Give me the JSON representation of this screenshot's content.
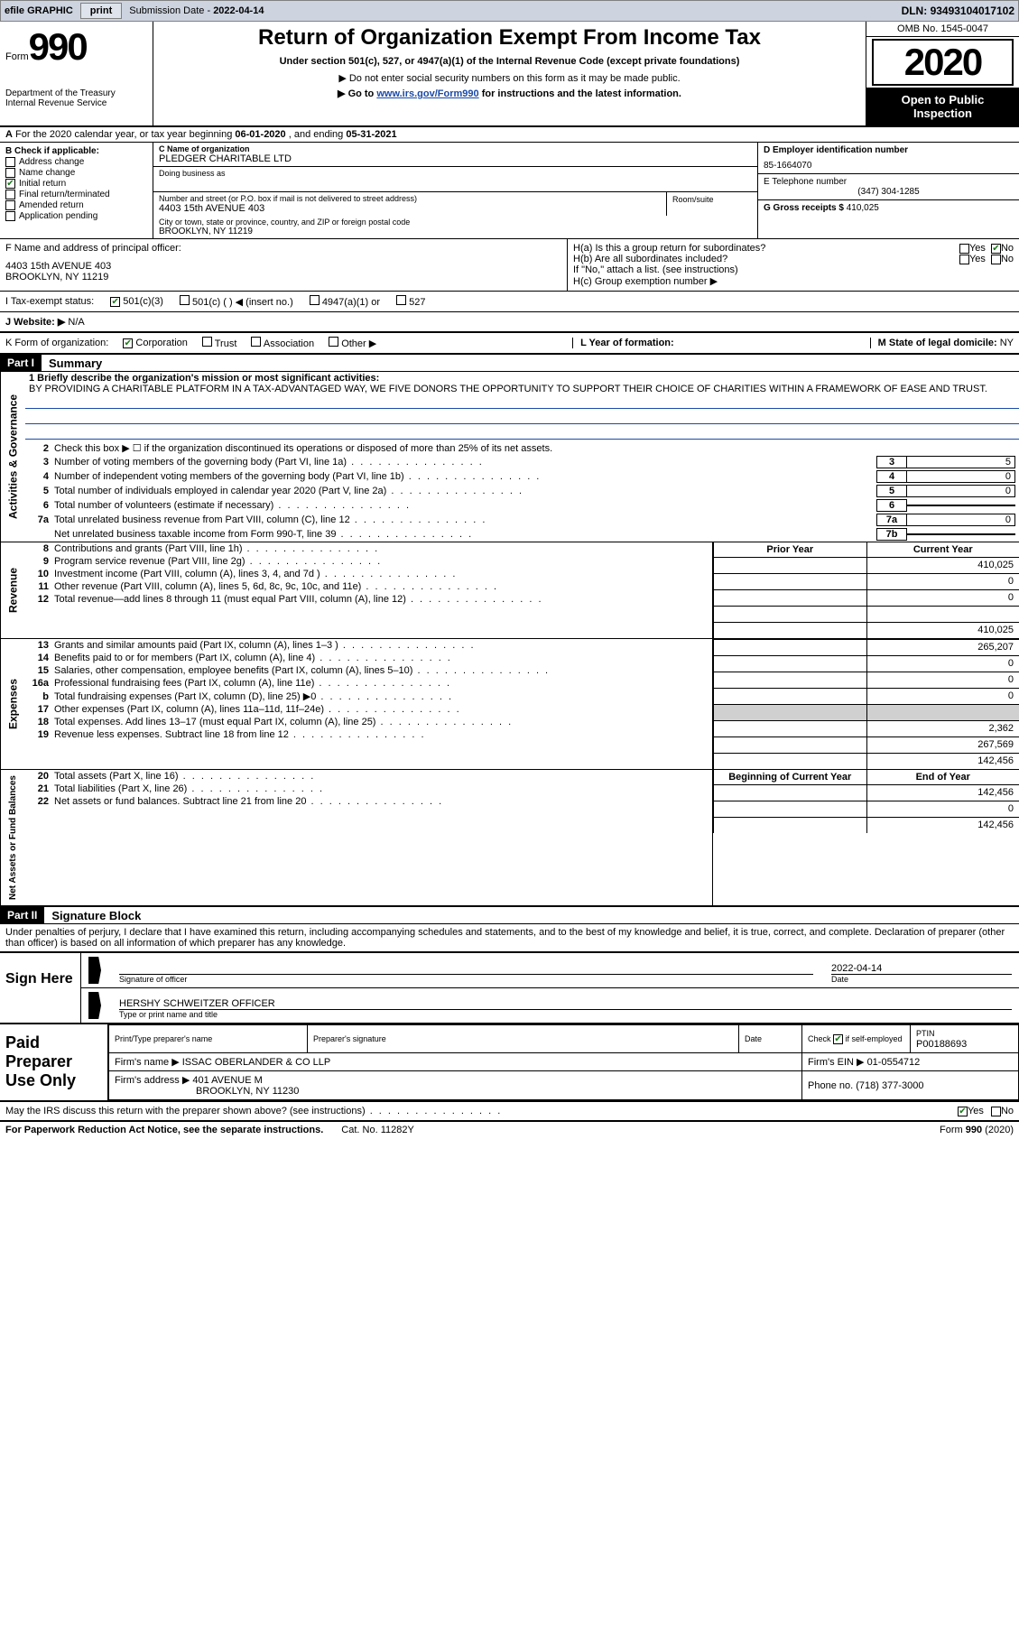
{
  "topbar": {
    "efile": "efile GRAPHIC",
    "print": "print",
    "subdate_label": "Submission Date - ",
    "subdate": "2022-04-14",
    "dln_label": "DLN: ",
    "dln": "93493104017102"
  },
  "header": {
    "form_prefix": "Form",
    "form_number": "990",
    "dept1": "Department of the Treasury",
    "dept2": "Internal Revenue Service",
    "title": "Return of Organization Exempt From Income Tax",
    "subtitle": "Under section 501(c), 527, or 4947(a)(1) of the Internal Revenue Code (except private foundations)",
    "warn1": "▶ Do not enter social security numbers on this form as it may be made public.",
    "warn2_prefix": "▶ Go to ",
    "warn2_link": "www.irs.gov/Form990",
    "warn2_suffix": " for instructions and the latest information.",
    "omb": "OMB No. 1545-0047",
    "year": "2020",
    "open1": "Open to Public",
    "open2": "Inspection"
  },
  "period": {
    "text1": "For the 2020 calendar year, or tax year beginning ",
    "begin": "06-01-2020",
    "text2": " , and ending ",
    "end": "05-31-2021",
    "prefix": "A"
  },
  "checkboxes": {
    "label": "B Check if applicable:",
    "address": "Address change",
    "name": "Name change",
    "initial": "Initial return",
    "final": "Final return/terminated",
    "amended": "Amended return",
    "app": "Application pending"
  },
  "org": {
    "c_label": "C Name of organization",
    "name": "PLEDGER CHARITABLE LTD",
    "dba_label": "Doing business as",
    "dba": "",
    "addr_label": "Number and street (or P.O. box if mail is not delivered to street address)",
    "addr": "4403 15th AVENUE 403",
    "room_label": "Room/suite",
    "city_label": "City or town, state or province, country, and ZIP or foreign postal code",
    "city": "BROOKLYN, NY  11219"
  },
  "right": {
    "d_label": "D Employer identification number",
    "ein": "85-1664070",
    "e_label": "E Telephone number",
    "phone": "(347) 304-1285",
    "g_label": "G Gross receipts $ ",
    "gross": "410,025"
  },
  "f": {
    "label": "F  Name and address of principal officer:",
    "addr1": "4403 15th AVENUE 403",
    "addr2": "BROOKLYN, NY  11219"
  },
  "h": {
    "a_label": "H(a)  Is this a group return for subordinates?",
    "b_label": "H(b)  Are all subordinates included?",
    "b_note": "If \"No,\" attach a list. (see instructions)",
    "c_label": "H(c)  Group exemption number ▶",
    "yes": "Yes",
    "no": "No"
  },
  "i": {
    "label": "I  Tax-exempt status:",
    "a": "501(c)(3)",
    "b": "501(c) (  ) ◀ (insert no.)",
    "c": "4947(a)(1) or",
    "d": "527"
  },
  "j": {
    "label": "J  Website: ▶",
    "val": "N/A"
  },
  "k": {
    "label": "K Form of organization:",
    "corp": "Corporation",
    "trust": "Trust",
    "assoc": "Association",
    "other": "Other ▶",
    "l_label": "L Year of formation:",
    "m_label": "M State of legal domicile: ",
    "m_val": "NY"
  },
  "part1": {
    "tag": "Part I",
    "title": "Summary",
    "q1_label": "1  Briefly describe the organization's mission or most significant activities:",
    "q1": "BY PROVIDING A CHARITABLE PLATFORM IN A TAX-ADVANTAGED WAY, WE FIVE DONORS THE OPPORTUNITY TO SUPPORT THEIR CHOICE OF CHARITIES WITHIN A FRAMEWORK OF EASE AND TRUST.",
    "q2": "Check this box ▶ ☐ if the organization discontinued its operations or disposed of more than 25% of its net assets.",
    "lines_gov": [
      {
        "n": "3",
        "t": "Number of voting members of the governing body (Part VI, line 1a)",
        "box": "3",
        "v": "5"
      },
      {
        "n": "4",
        "t": "Number of independent voting members of the governing body (Part VI, line 1b)",
        "box": "4",
        "v": "0"
      },
      {
        "n": "5",
        "t": "Total number of individuals employed in calendar year 2020 (Part V, line 2a)",
        "box": "5",
        "v": "0"
      },
      {
        "n": "6",
        "t": "Total number of volunteers (estimate if necessary)",
        "box": "6",
        "v": ""
      },
      {
        "n": "7a",
        "t": "Total unrelated business revenue from Part VIII, column (C), line 12",
        "box": "7a",
        "v": "0"
      },
      {
        "n": "",
        "t": "Net unrelated business taxable income from Form 990-T, line 39",
        "box": "7b",
        "v": ""
      }
    ],
    "prior": "Prior Year",
    "current": "Current Year",
    "bboy": "Beginning of Current Year",
    "eoy": "End of Year",
    "rev": [
      {
        "n": "8",
        "t": "Contributions and grants (Part VIII, line 1h)",
        "p": "",
        "c": "410,025"
      },
      {
        "n": "9",
        "t": "Program service revenue (Part VIII, line 2g)",
        "p": "",
        "c": "0"
      },
      {
        "n": "10",
        "t": "Investment income (Part VIII, column (A), lines 3, 4, and 7d )",
        "p": "",
        "c": "0"
      },
      {
        "n": "11",
        "t": "Other revenue (Part VIII, column (A), lines 5, 6d, 8c, 9c, 10c, and 11e)",
        "p": "",
        "c": ""
      },
      {
        "n": "12",
        "t": "Total revenue—add lines 8 through 11 (must equal Part VIII, column (A), line 12)",
        "p": "",
        "c": "410,025"
      }
    ],
    "exp": [
      {
        "n": "13",
        "t": "Grants and similar amounts paid (Part IX, column (A), lines 1–3 )",
        "p": "",
        "c": "265,207"
      },
      {
        "n": "14",
        "t": "Benefits paid to or for members (Part IX, column (A), line 4)",
        "p": "",
        "c": "0"
      },
      {
        "n": "15",
        "t": "Salaries, other compensation, employee benefits (Part IX, column (A), lines 5–10)",
        "p": "",
        "c": "0"
      },
      {
        "n": "16a",
        "t": "Professional fundraising fees (Part IX, column (A), line 11e)",
        "p": "",
        "c": "0"
      },
      {
        "n": "b",
        "t": "Total fundraising expenses (Part IX, column (D), line 25) ▶0",
        "p": "gray",
        "c": "gray"
      },
      {
        "n": "17",
        "t": "Other expenses (Part IX, column (A), lines 11a–11d, 11f–24e)",
        "p": "",
        "c": "2,362"
      },
      {
        "n": "18",
        "t": "Total expenses. Add lines 13–17 (must equal Part IX, column (A), line 25)",
        "p": "",
        "c": "267,569"
      },
      {
        "n": "19",
        "t": "Revenue less expenses. Subtract line 18 from line 12",
        "p": "",
        "c": "142,456"
      }
    ],
    "net": [
      {
        "n": "20",
        "t": "Total assets (Part X, line 16)",
        "p": "",
        "c": "142,456"
      },
      {
        "n": "21",
        "t": "Total liabilities (Part X, line 26)",
        "p": "",
        "c": "0"
      },
      {
        "n": "22",
        "t": "Net assets or fund balances. Subtract line 21 from line 20",
        "p": "",
        "c": "142,456"
      }
    ],
    "vtab_gov": "Activities & Governance",
    "vtab_rev": "Revenue",
    "vtab_exp": "Expenses",
    "vtab_net": "Net Assets or Fund Balances"
  },
  "part2": {
    "tag": "Part II",
    "title": "Signature Block",
    "decl": "Under penalties of perjury, I declare that I have examined this return, including accompanying schedules and statements, and to the best of my knowledge and belief, it is true, correct, and complete. Declaration of preparer (other than officer) is based on all information of which preparer has any knowledge.",
    "sign_here": "Sign Here",
    "sig_label": "Signature of officer",
    "date_label": "Date",
    "sig_date": "2022-04-14",
    "officer": "HERSHY SCHWEITZER  OFFICER",
    "officer_label": "Type or print name and title"
  },
  "paid": {
    "title": "Paid Preparer Use Only",
    "print_label": "Print/Type preparer's name",
    "sig_label": "Preparer's signature",
    "date_label": "Date",
    "check_label": "Check ☑ if self-employed",
    "ptin_label": "PTIN",
    "ptin": "P00188693",
    "firm_label": "Firm's name   ▶",
    "firm": "ISSAC OBERLANDER & CO LLP",
    "ein_label": "Firm's EIN ▶",
    "ein": "01-0554712",
    "addr_label": "Firm's address ▶",
    "addr1": "401 AVENUE M",
    "addr2": "BROOKLYN, NY  11230",
    "phone_label": "Phone no.",
    "phone": "(718) 377-3000"
  },
  "discuss": {
    "q": "May the IRS discuss this return with the preparer shown above? (see instructions)",
    "yes": "Yes",
    "no": "No"
  },
  "footer": {
    "pra": "For Paperwork Reduction Act Notice, see the separate instructions.",
    "cat": "Cat. No. 11282Y",
    "form": "Form 990 (2020)"
  },
  "colors": {
    "link": "#1a4aa8",
    "check": "#1a7a1a",
    "topbar": "#cdd4e0"
  }
}
